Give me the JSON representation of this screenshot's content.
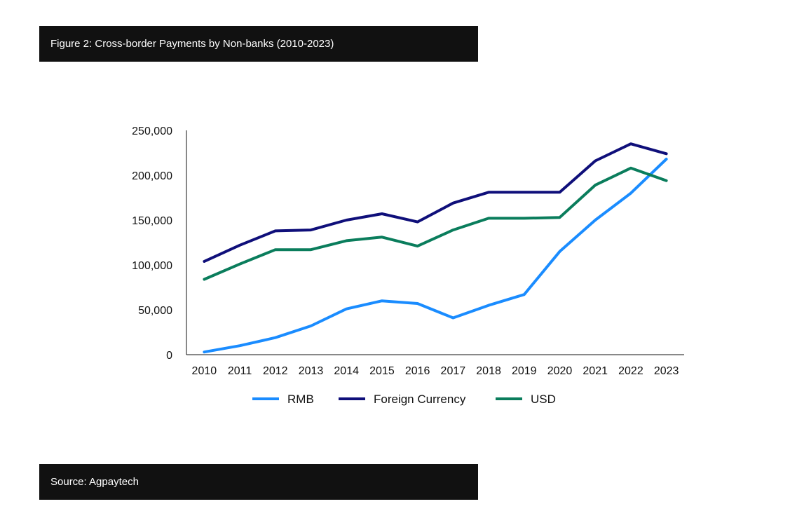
{
  "header": {
    "title": "Figure 2: Cross-border Payments by Non-banks (2010-2023)"
  },
  "footer": {
    "source": "Source: Agpaytech"
  },
  "chart_data": {
    "type": "line",
    "title": "Figure 2: Cross-border Payments by Non-banks (2010-2023)",
    "xlabel": "",
    "ylabel": "",
    "x": [
      "2010",
      "2011",
      "2012",
      "2013",
      "2014",
      "2015",
      "2016",
      "2017",
      "2018",
      "2019",
      "2020",
      "2021",
      "2022",
      "2023"
    ],
    "ylim": [
      0,
      250000
    ],
    "yticks": [
      0,
      50000,
      100000,
      150000,
      200000,
      250000
    ],
    "ytick_labels": [
      "0",
      "50,000",
      "100,000",
      "150,000",
      "200,000",
      "250,000"
    ],
    "grid": false,
    "legend_position": "bottom",
    "series": [
      {
        "name": "RMB",
        "color": "#1a8cff",
        "values": [
          3000,
          10000,
          19000,
          32000,
          51000,
          60000,
          57000,
          41000,
          55000,
          67000,
          115000,
          150000,
          180000,
          218000
        ]
      },
      {
        "name": "Foreign Currency",
        "color": "#0f0f7a",
        "values": [
          104000,
          122000,
          138000,
          139000,
          150000,
          157000,
          148000,
          169000,
          181000,
          181000,
          181000,
          216000,
          235000,
          224000
        ]
      },
      {
        "name": "USD",
        "color": "#0a7d5c",
        "values": [
          84000,
          101000,
          117000,
          117000,
          127000,
          131000,
          121000,
          139000,
          152000,
          152000,
          153000,
          189000,
          208000,
          194000
        ]
      }
    ]
  }
}
